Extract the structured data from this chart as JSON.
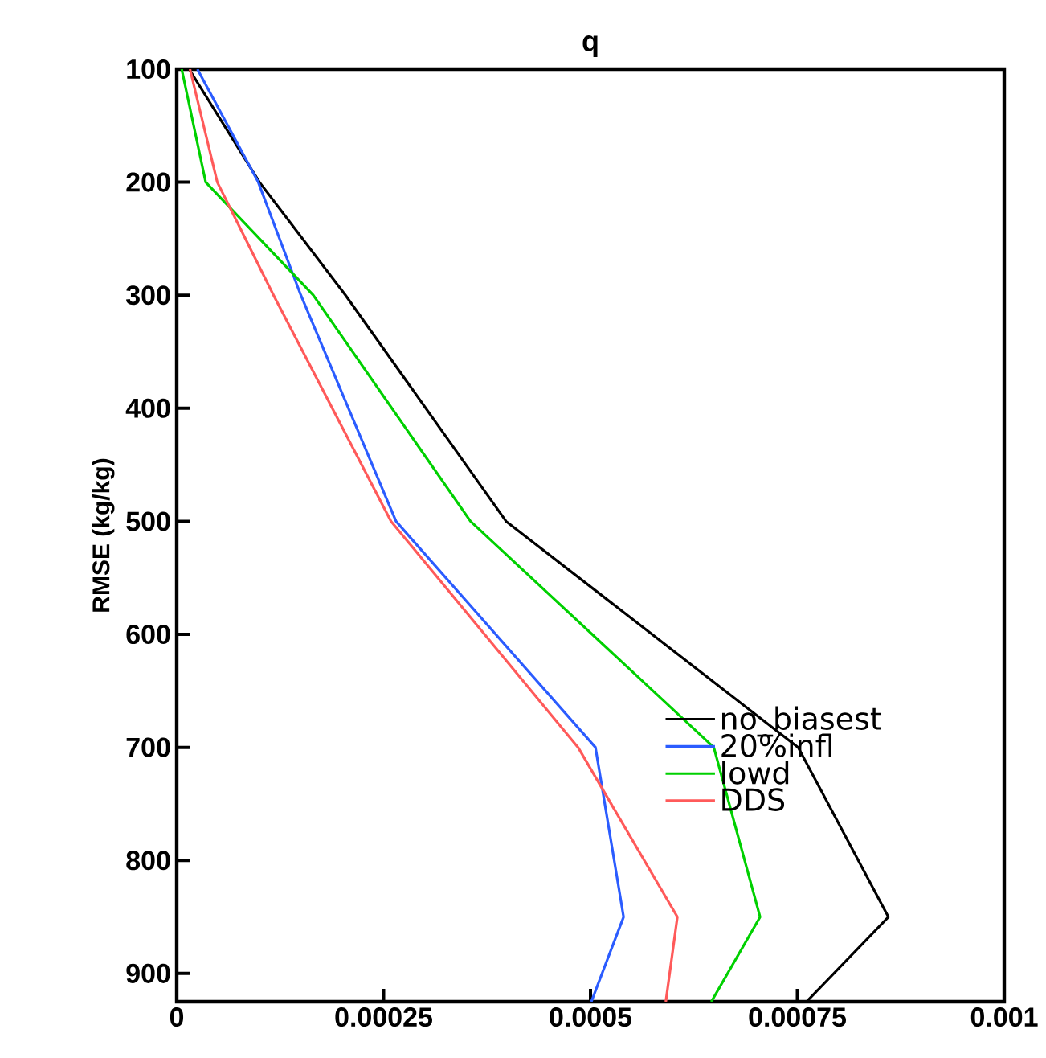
{
  "chart_data": {
    "type": "line",
    "title": "q",
    "ylabel": "RMSE (kg/kg)",
    "xlim": [
      0,
      0.001
    ],
    "xticks": [
      0,
      0.00025,
      0.0005,
      0.00075,
      0.001
    ],
    "ylim": [
      925,
      100
    ],
    "yticks": [
      100,
      200,
      300,
      400,
      500,
      600,
      700,
      800,
      900
    ],
    "grid": false,
    "legend": "right",
    "marker": "none",
    "line_style": "solid",
    "series": [
      {
        "name": "no_biasest",
        "color": "#000000",
        "x": [
          1.5e-05,
          0.0001,
          0.000204,
          0.000398,
          0.000751,
          0.00086,
          0.000761
        ],
        "values": [
          100,
          200,
          300,
          500,
          700,
          850,
          925
        ]
      },
      {
        "name": "20%infl",
        "color": "#2b5cff",
        "x": [
          2.5e-05,
          9.85e-05,
          0.00015,
          0.000265,
          0.000506,
          0.00054,
          0.000501
        ],
        "values": [
          100,
          200,
          300,
          500,
          700,
          850,
          925
        ]
      },
      {
        "name": "lowd",
        "color": "#00d000",
        "x": [
          6e-06,
          3.5e-05,
          0.000165,
          0.000355,
          0.000649,
          0.000705,
          0.000646
        ],
        "values": [
          100,
          200,
          300,
          500,
          700,
          850,
          925
        ]
      },
      {
        "name": "DDS",
        "color": "#ff5a5a",
        "x": [
          1.6e-05,
          4.9e-05,
          0.000117,
          0.000259,
          0.000485,
          0.000605,
          0.000591
        ],
        "values": [
          100,
          200,
          300,
          500,
          700,
          850,
          925
        ]
      }
    ]
  }
}
